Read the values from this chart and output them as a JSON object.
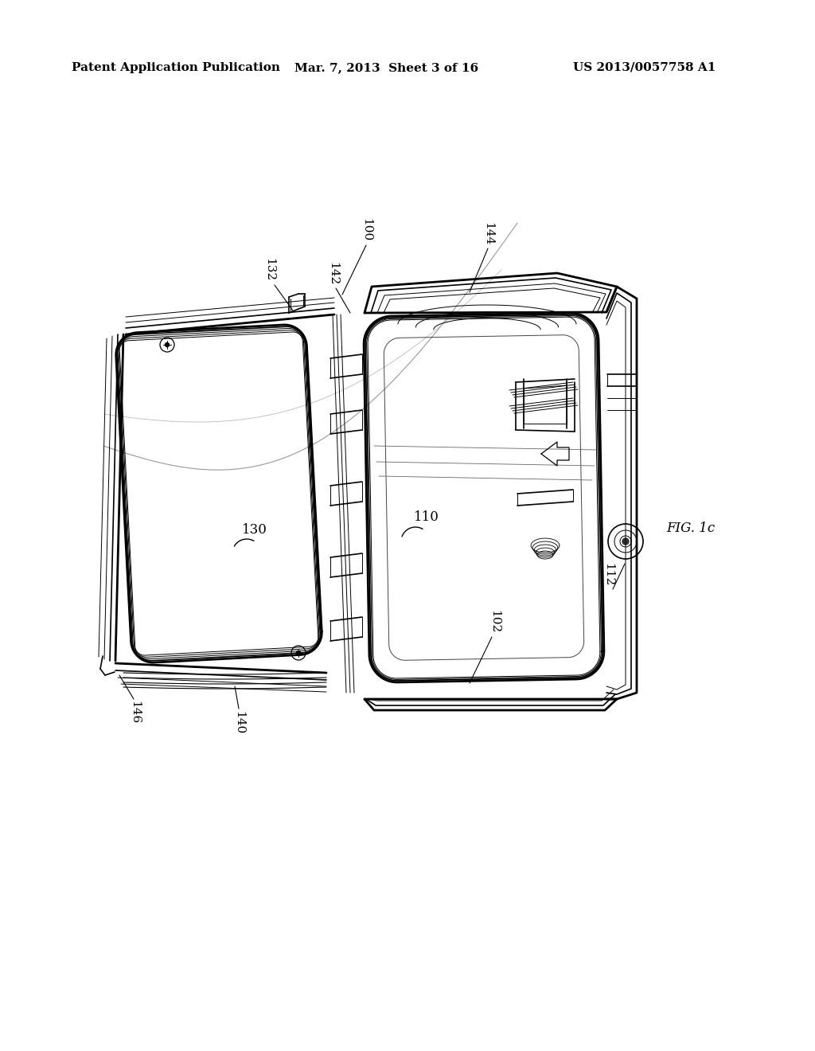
{
  "background_color": "#ffffff",
  "header_left": "Patent Application Publication",
  "header_center": "Mar. 7, 2013  Sheet 3 of 16",
  "header_right": "US 2013/0057758 A1",
  "fig_label": "FIG. 1c",
  "line_color": "#000000",
  "text_color": "#000000",
  "header_fontsize": 11,
  "label_fontsize": 11,
  "fig_label_fontsize": 12,
  "lw_outer": 2.0,
  "lw_inner": 1.2,
  "lw_fine": 0.7
}
